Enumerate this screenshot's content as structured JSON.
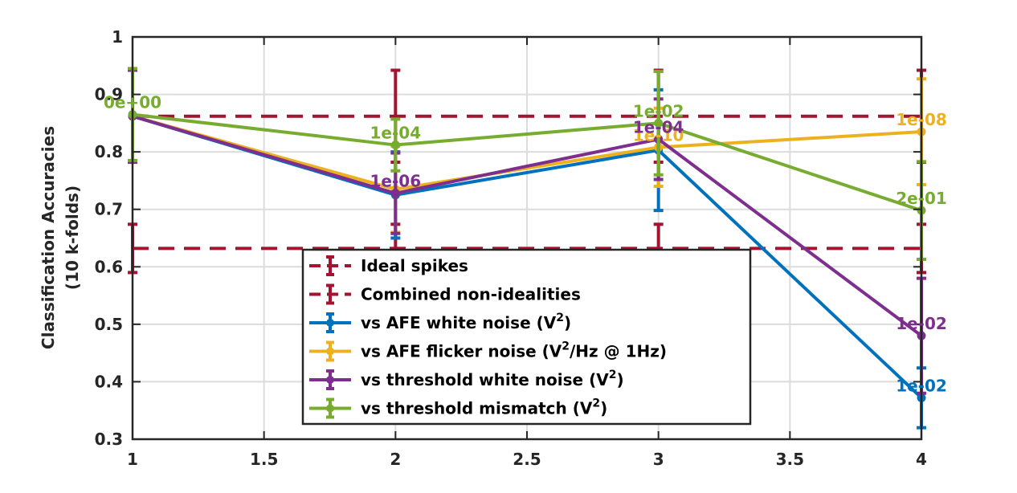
{
  "chart_data": {
    "type": "line",
    "xlabel": "",
    "ylabel": [
      "Classification Accuracies",
      "(10 k-folds)"
    ],
    "xlim": [
      1,
      4
    ],
    "ylim": [
      0.3,
      1
    ],
    "x_ticks": [
      "1",
      "1.5",
      "2",
      "2.5",
      "3",
      "3.5",
      "4"
    ],
    "y_ticks": [
      "0.3",
      "0.4",
      "0.5",
      "0.6",
      "0.7",
      "0.8",
      "0.9",
      "1"
    ],
    "grid": true,
    "legend_position": "bottom-center",
    "reference_lines": [
      {
        "name": "Ideal spikes",
        "color": "#A2142F",
        "style": "dashed",
        "value": 0.862,
        "error": 0.08
      },
      {
        "name": "Combined non-idealities",
        "color": "#A2142F",
        "style": "dashed",
        "value": 0.632,
        "error": 0.042
      }
    ],
    "series": [
      {
        "name": "vs AFE white noise (V²)",
        "name_parts": [
          "vs AFE white noise (V",
          "2",
          ")"
        ],
        "color": "#0072BD",
        "x": [
          1,
          2,
          3,
          4
        ],
        "values": [
          0.862,
          0.725,
          0.803,
          0.372
        ],
        "errors": [
          0.08,
          0.075,
          0.105,
          0.052
        ],
        "labels": [
          "",
          "",
          "",
          "1e-02"
        ]
      },
      {
        "name": "vs AFE flicker noise (V²/Hz @ 1Hz)",
        "name_parts": [
          "vs AFE flicker noise (V",
          "2",
          "/Hz @ 1Hz)"
        ],
        "color": "#EDB120",
        "x": [
          1,
          2,
          3,
          4
        ],
        "values": [
          0.862,
          0.735,
          0.808,
          0.835
        ],
        "errors": [
          0.08,
          0.075,
          0.068,
          0.092
        ],
        "labels": [
          "",
          "",
          "1e-10",
          "1e-08"
        ]
      },
      {
        "name": "vs threshold white noise (V²)",
        "name_parts": [
          "vs threshold white noise (V",
          "2",
          ")"
        ],
        "color": "#7E2F8E",
        "x": [
          1,
          2,
          3,
          4
        ],
        "values": [
          0.862,
          0.728,
          0.822,
          0.48
        ],
        "errors": [
          0.08,
          0.07,
          0.07,
          0.1
        ],
        "labels": [
          "",
          "1e-06",
          "1e-04",
          "1e-02"
        ]
      },
      {
        "name": "vs threshold mismatch (V²)",
        "name_parts": [
          "vs threshold mismatch (V",
          "2",
          ")"
        ],
        "color": "#77AC30",
        "x": [
          1,
          2,
          3,
          4
        ],
        "values": [
          0.865,
          0.812,
          0.85,
          0.698
        ],
        "errors": [
          0.08,
          0.045,
          0.09,
          0.085
        ],
        "labels": [
          "0e+00",
          "1e-04",
          "1e-02",
          "2e-01"
        ]
      }
    ]
  }
}
